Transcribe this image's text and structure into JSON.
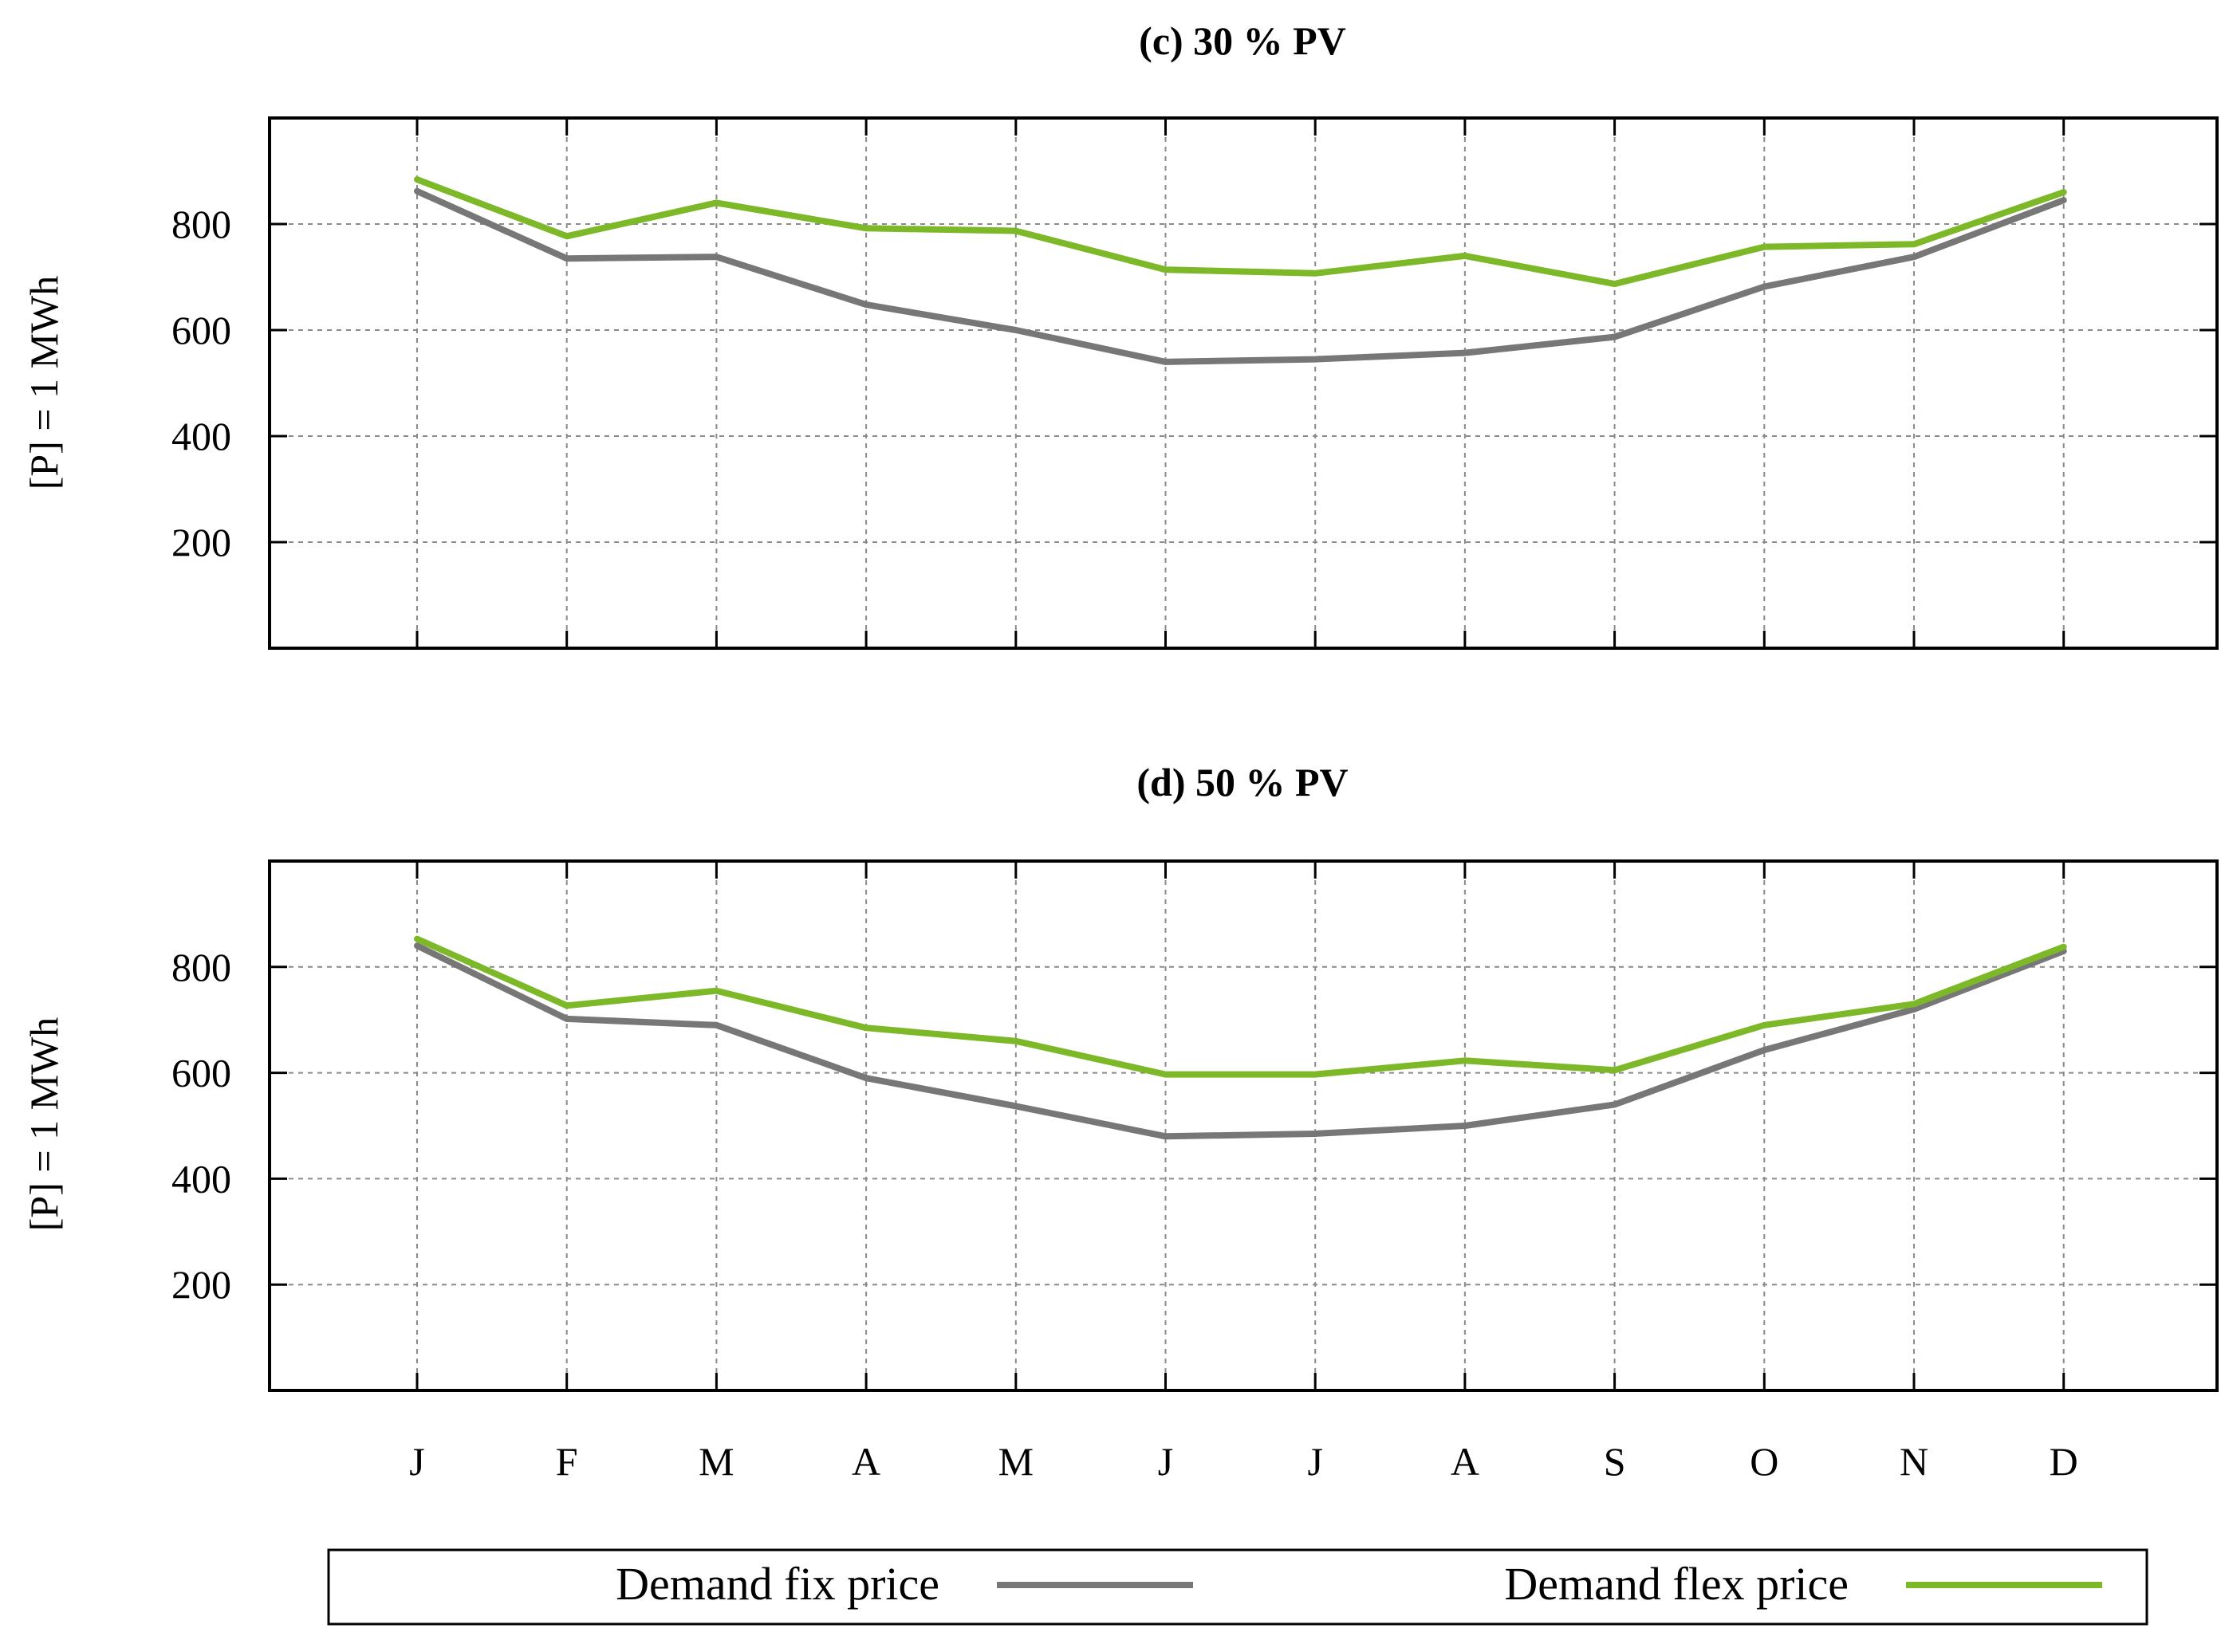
{
  "chart_data": [
    {
      "type": "line",
      "title": "(c) 30 % PV",
      "ylabel": "[P] = 1 MWh",
      "xlabel": "",
      "categories": [
        "J",
        "F",
        "M",
        "A",
        "M",
        "J",
        "J",
        "A",
        "S",
        "O",
        "N",
        "D"
      ],
      "ylim": [
        0,
        1000
      ],
      "yticks": [
        200,
        400,
        600,
        800
      ],
      "grid": true,
      "series": [
        {
          "name": "Demand fix price",
          "color": "#777777",
          "values": [
            862,
            735,
            738,
            648,
            600,
            540,
            545,
            557,
            587,
            682,
            738,
            845
          ]
        },
        {
          "name": "Demand flex price",
          "color": "#7cb828",
          "values": [
            884,
            777,
            840,
            792,
            787,
            714,
            707,
            740,
            687,
            757,
            762,
            860
          ]
        }
      ]
    },
    {
      "type": "line",
      "title": "(d) 50 % PV",
      "ylabel": "[P] = 1 MWh",
      "xlabel": "",
      "categories": [
        "J",
        "F",
        "M",
        "A",
        "M",
        "J",
        "J",
        "A",
        "S",
        "O",
        "N",
        "D"
      ],
      "ylim": [
        0,
        1000
      ],
      "yticks": [
        200,
        400,
        600,
        800
      ],
      "grid": true,
      "series": [
        {
          "name": "Demand fix price",
          "color": "#777777",
          "values": [
            840,
            702,
            690,
            590,
            537,
            480,
            485,
            500,
            540,
            643,
            720,
            830
          ]
        },
        {
          "name": "Demand flex price",
          "color": "#7cb828",
          "values": [
            853,
            727,
            755,
            685,
            660,
            597,
            597,
            623,
            605,
            690,
            730,
            838
          ]
        }
      ]
    }
  ],
  "legend": {
    "position": "bottom",
    "items": [
      {
        "label": "Demand fix price",
        "color": "#777777"
      },
      {
        "label": "Demand flex price",
        "color": "#7cb828"
      }
    ]
  }
}
